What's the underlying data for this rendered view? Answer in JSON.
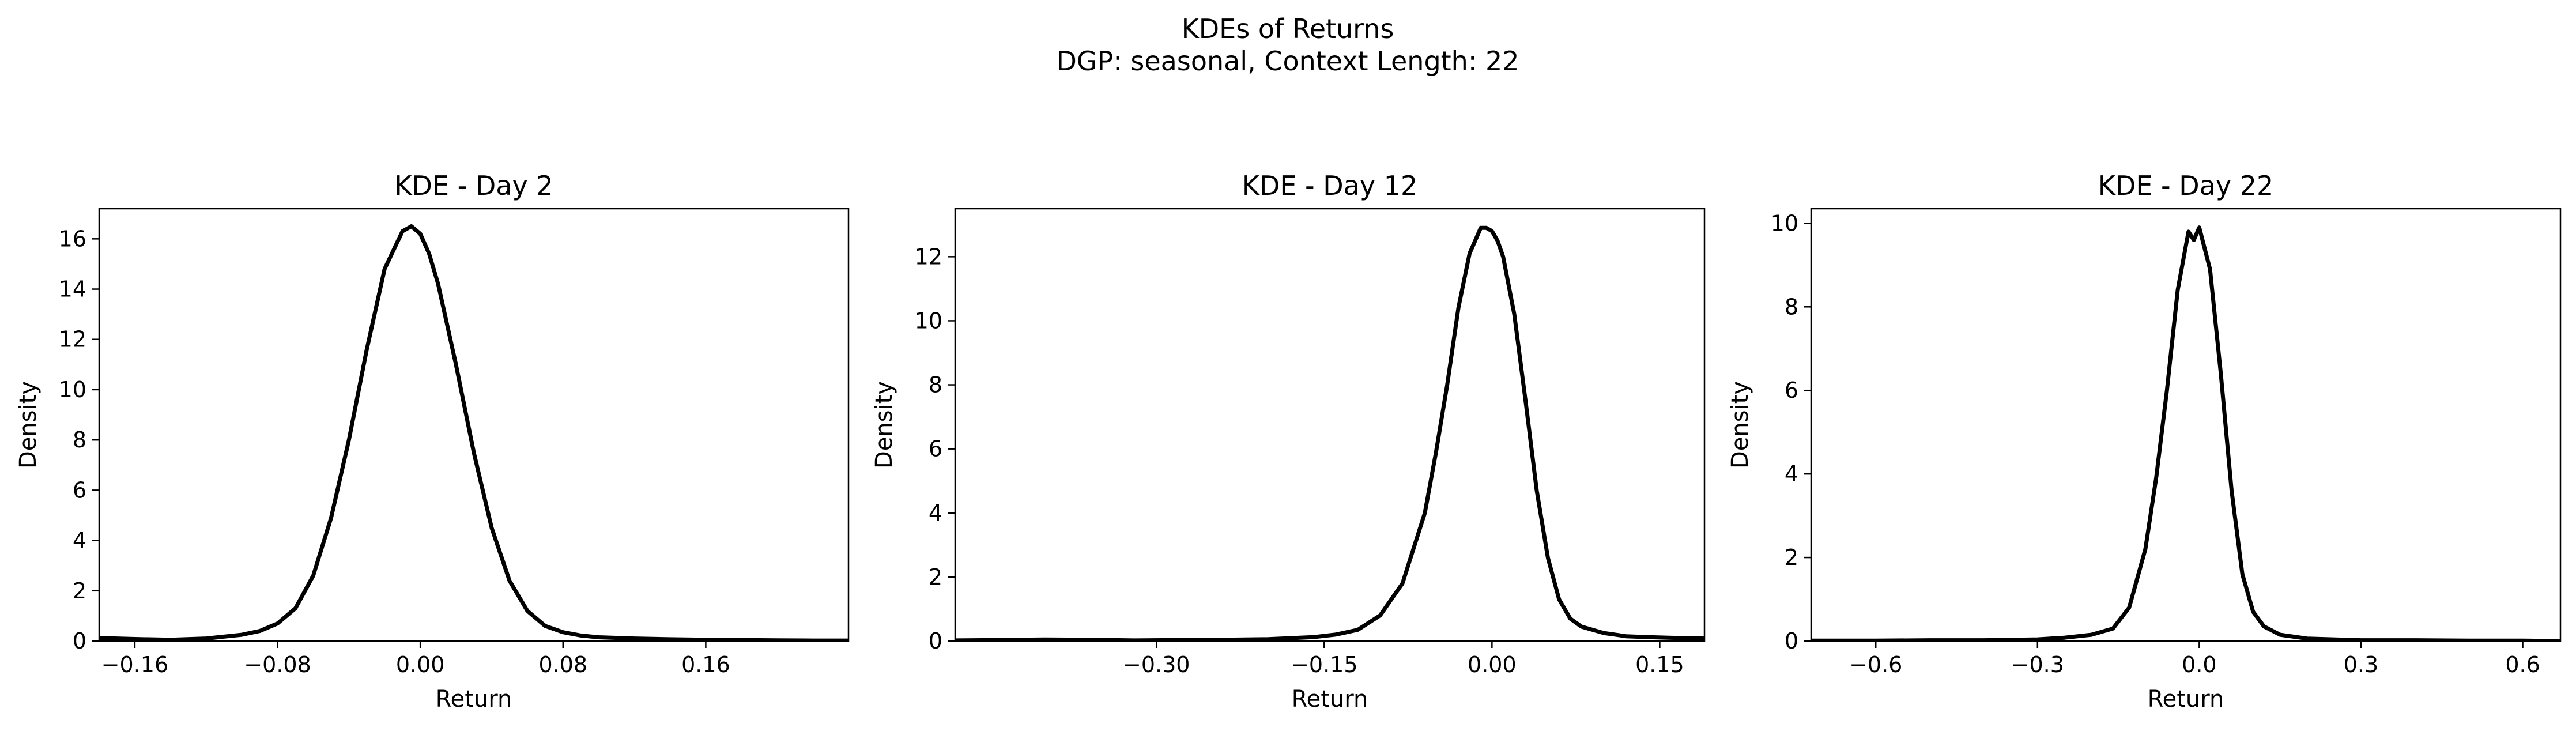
{
  "figure": {
    "title_line1": "KDEs of Returns",
    "title_line2": "DGP: seasonal, Context Length: 22",
    "line_color": "#000000",
    "background": "#ffffff"
  },
  "chart_data": [
    {
      "type": "line",
      "title": "KDE - Day 2",
      "xlabel": "Return",
      "ylabel": "Density",
      "xlim": [
        -0.18,
        0.24
      ],
      "ylim": [
        0,
        17.2
      ],
      "xticks": [
        -0.16,
        -0.08,
        0.0,
        0.08,
        0.16
      ],
      "xtick_labels": [
        "−0.16",
        "−0.08",
        "0.00",
        "0.08",
        "0.16"
      ],
      "yticks": [
        0,
        2,
        4,
        6,
        8,
        10,
        12,
        14,
        16
      ],
      "ytick_labels": [
        "0",
        "2",
        "4",
        "6",
        "8",
        "10",
        "12",
        "14",
        "16"
      ],
      "grid": false,
      "series": [
        {
          "x": [
            -0.18,
            -0.16,
            -0.14,
            -0.12,
            -0.1,
            -0.09,
            -0.08,
            -0.07,
            -0.06,
            -0.05,
            -0.04,
            -0.03,
            -0.02,
            -0.01,
            -0.005,
            0.0,
            0.005,
            0.01,
            0.02,
            0.03,
            0.04,
            0.05,
            0.06,
            0.07,
            0.08,
            0.09,
            0.1,
            0.12,
            0.14,
            0.16,
            0.18,
            0.2,
            0.22,
            0.24
          ],
          "y": [
            0.12,
            0.08,
            0.05,
            0.1,
            0.25,
            0.4,
            0.7,
            1.3,
            2.6,
            4.9,
            8.0,
            11.6,
            14.8,
            16.3,
            16.5,
            16.2,
            15.4,
            14.2,
            11.0,
            7.5,
            4.5,
            2.4,
            1.2,
            0.6,
            0.35,
            0.22,
            0.15,
            0.1,
            0.07,
            0.05,
            0.04,
            0.03,
            0.02,
            0.02
          ]
        }
      ]
    },
    {
      "type": "line",
      "title": "KDE - Day 12",
      "xlabel": "Return",
      "ylabel": "Density",
      "xlim": [
        -0.48,
        0.19
      ],
      "ylim": [
        0,
        13.5
      ],
      "xticks": [
        -0.3,
        -0.15,
        0.0,
        0.15
      ],
      "xtick_labels": [
        "−0.30",
        "−0.15",
        "0.00",
        "0.15"
      ],
      "yticks": [
        0,
        2,
        4,
        6,
        8,
        10,
        12
      ],
      "ytick_labels": [
        "0",
        "2",
        "4",
        "6",
        "8",
        "10",
        "12"
      ],
      "grid": false,
      "series": [
        {
          "x": [
            -0.48,
            -0.44,
            -0.4,
            -0.36,
            -0.32,
            -0.28,
            -0.24,
            -0.2,
            -0.16,
            -0.14,
            -0.12,
            -0.1,
            -0.08,
            -0.06,
            -0.05,
            -0.04,
            -0.03,
            -0.02,
            -0.01,
            -0.005,
            0.0,
            0.005,
            0.01,
            0.02,
            0.03,
            0.04,
            0.05,
            0.06,
            0.07,
            0.08,
            0.1,
            0.12,
            0.14,
            0.16,
            0.19
          ],
          "y": [
            0.02,
            0.03,
            0.05,
            0.04,
            0.02,
            0.03,
            0.04,
            0.06,
            0.12,
            0.2,
            0.35,
            0.8,
            1.8,
            4.0,
            5.9,
            8.0,
            10.4,
            12.1,
            12.9,
            12.9,
            12.8,
            12.5,
            12.0,
            10.2,
            7.5,
            4.7,
            2.6,
            1.3,
            0.7,
            0.45,
            0.25,
            0.15,
            0.12,
            0.1,
            0.08
          ]
        }
      ]
    },
    {
      "type": "line",
      "title": "KDE - Day 22",
      "xlabel": "Return",
      "ylabel": "Density",
      "xlim": [
        -0.72,
        0.67
      ],
      "ylim": [
        0,
        10.35
      ],
      "xticks": [
        -0.6,
        -0.3,
        0.0,
        0.3,
        0.6
      ],
      "xtick_labels": [
        "−0.6",
        "−0.3",
        "0.0",
        "0.3",
        "0.6"
      ],
      "yticks": [
        0,
        2,
        4,
        6,
        8,
        10
      ],
      "ytick_labels": [
        "0",
        "2",
        "4",
        "6",
        "8",
        "10"
      ],
      "grid": false,
      "series": [
        {
          "x": [
            -0.72,
            -0.6,
            -0.5,
            -0.4,
            -0.3,
            -0.25,
            -0.2,
            -0.16,
            -0.13,
            -0.1,
            -0.08,
            -0.06,
            -0.04,
            -0.02,
            -0.01,
            0.0,
            0.01,
            0.02,
            0.04,
            0.06,
            0.08,
            0.1,
            0.12,
            0.15,
            0.2,
            0.3,
            0.4,
            0.5,
            0.6,
            0.67
          ],
          "y": [
            0.01,
            0.01,
            0.02,
            0.02,
            0.04,
            0.08,
            0.15,
            0.3,
            0.8,
            2.2,
            3.9,
            6.0,
            8.4,
            9.8,
            9.6,
            9.9,
            9.4,
            8.9,
            6.4,
            3.6,
            1.6,
            0.7,
            0.35,
            0.15,
            0.06,
            0.02,
            0.02,
            0.01,
            0.01,
            0.0
          ]
        }
      ]
    }
  ]
}
